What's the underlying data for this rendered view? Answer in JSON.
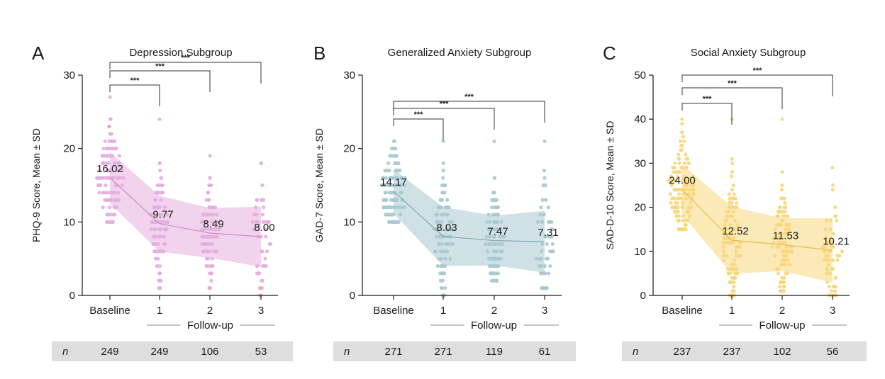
{
  "follow_up_label": "Follow-up",
  "n_label": "n",
  "significance": "***",
  "chart_data": [
    {
      "type": "scatter",
      "panel_letter": "A",
      "title": "Depression Subgroup",
      "ylabel": "PHQ-9 Score, Mean ± SD",
      "ylim": [
        0,
        30
      ],
      "yticks": [
        0,
        10,
        20,
        30
      ],
      "categories": [
        "Baseline",
        "1",
        "2",
        "3"
      ],
      "n": [
        249,
        249,
        106,
        53
      ],
      "means": [
        16.02,
        9.77,
        8.49,
        8.0
      ],
      "sd": [
        3.5,
        3.8,
        3.4,
        4.1
      ],
      "range": [
        [
          10,
          27
        ],
        [
          1,
          24
        ],
        [
          1,
          19
        ],
        [
          0,
          18
        ]
      ],
      "color": "#e6aee0",
      "line_color": "#c98cc4",
      "comparisons": [
        [
          "Baseline",
          "1"
        ],
        [
          "Baseline",
          "2"
        ],
        [
          "Baseline",
          "3"
        ]
      ]
    },
    {
      "type": "scatter",
      "panel_letter": "B",
      "title": "Generalized Anxiety Subgroup",
      "ylabel": "GAD-7 Score, Mean ± SD",
      "ylim": [
        0,
        30
      ],
      "yticks": [
        0,
        10,
        20,
        30
      ],
      "categories": [
        "Baseline",
        "1",
        "2",
        "3"
      ],
      "n": [
        271,
        271,
        119,
        61
      ],
      "means": [
        14.17,
        8.03,
        7.47,
        7.31
      ],
      "sd": [
        3.0,
        4.0,
        3.4,
        4.2
      ],
      "range": [
        [
          10,
          21
        ],
        [
          0,
          21
        ],
        [
          2,
          21
        ],
        [
          1,
          21
        ]
      ],
      "color": "#aac9d0",
      "line_color": "#7fa8b2",
      "comparisons": [
        [
          "Baseline",
          "1"
        ],
        [
          "Baseline",
          "2"
        ],
        [
          "Baseline",
          "3"
        ]
      ]
    },
    {
      "type": "scatter",
      "panel_letter": "C",
      "title": "Social Anxiety Subgroup",
      "ylabel": "SAD-D-10 Score, Mean ± SD",
      "ylim": [
        0,
        50
      ],
      "yticks": [
        0,
        10,
        20,
        30,
        40,
        50
      ],
      "categories": [
        "Baseline",
        "1",
        "2",
        "3"
      ],
      "n": [
        237,
        237,
        102,
        56
      ],
      "means": [
        24.0,
        12.52,
        11.53,
        10.21
      ],
      "sd": [
        5.7,
        7.6,
        6.0,
        7.3
      ],
      "range": [
        [
          15,
          40
        ],
        [
          0,
          40
        ],
        [
          1,
          40
        ],
        [
          0,
          29
        ]
      ],
      "color": "#f7d77b",
      "line_color": "#e8bd4b",
      "comparisons": [
        [
          "Baseline",
          "1"
        ],
        [
          "Baseline",
          "2"
        ],
        [
          "Baseline",
          "3"
        ]
      ]
    }
  ]
}
